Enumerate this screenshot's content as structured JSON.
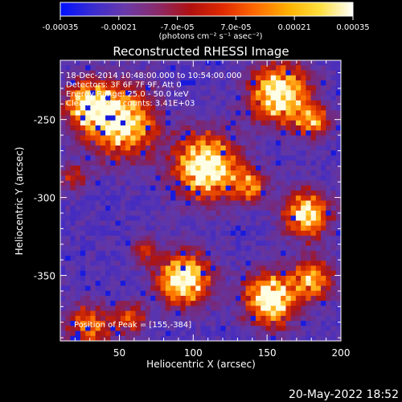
{
  "colorbar": {
    "tick_labels": [
      "-0.00035",
      "-0.00021",
      "-7.0e-05",
      "7.0e-05",
      "0.00021",
      "0.00035"
    ],
    "units_label": "(photons cm⁻² s⁻¹ asec⁻²)",
    "colors": [
      "#0010ff",
      "#3a2cd0",
      "#6a3aa8",
      "#8a2a6a",
      "#b01010",
      "#e02a00",
      "#ff6a00",
      "#ffb000",
      "#ffe040",
      "#ffffff"
    ]
  },
  "plot": {
    "title": "Reconstructed RHESSI Image",
    "x_axis_label": "Heliocentric X (arcsec)",
    "y_axis_label": "Heliocentric Y (arcsec)",
    "x_tick_labels": [
      "50",
      "100",
      "150",
      "200"
    ],
    "y_tick_labels": [
      "-250",
      "-300",
      "-350"
    ],
    "x_range": [
      10,
      200
    ],
    "y_range": [
      -392,
      -212
    ],
    "x_ticks": [
      50,
      100,
      150,
      200
    ],
    "y_ticks": [
      -250,
      -300,
      -350
    ],
    "annotation_lines": [
      "18-Dec-2014 10:48:00.000 to 10:54:00.000",
      "Detectors: 3F 6F 7F 9F, Att 0",
      "Energy Range: 25.0 - 50.0 keV",
      "Clean     Total counts: 3.41E+03"
    ],
    "peak_label": "Position of Peak = [155,-384]"
  },
  "footer": {
    "timestamp": "20-May-2022 18:52"
  }
}
